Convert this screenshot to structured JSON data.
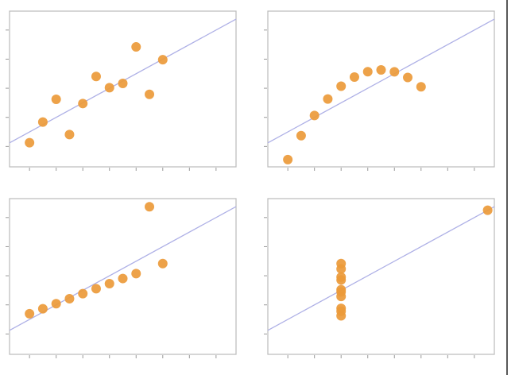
{
  "chart_data": [
    {
      "type": "scatter",
      "x": [
        10,
        8,
        13,
        9,
        11,
        14,
        6,
        4,
        12,
        7,
        5
      ],
      "y": [
        8.04,
        6.95,
        7.58,
        8.81,
        8.33,
        9.96,
        7.24,
        4.26,
        10.84,
        4.82,
        5.68
      ],
      "color": "#ec9a3a",
      "xlim": [
        2.5,
        19.5
      ],
      "ylim": [
        2.6,
        13.3
      ],
      "xticks": [
        4,
        6,
        8,
        10,
        12,
        14,
        16,
        18
      ],
      "yticks": [
        4,
        6,
        8,
        10,
        12
      ],
      "fit_line": {
        "intercept": 3,
        "slope": 0.5,
        "color": "#aeb0e6"
      }
    },
    {
      "type": "scatter",
      "x": [
        10,
        8,
        13,
        9,
        11,
        14,
        6,
        4,
        12,
        7,
        5
      ],
      "y": [
        9.14,
        8.14,
        8.74,
        8.77,
        9.26,
        8.1,
        6.13,
        3.1,
        9.13,
        7.26,
        4.74
      ],
      "color": "#ec9a3a",
      "xlim": [
        2.5,
        19.5
      ],
      "ylim": [
        2.6,
        13.3
      ],
      "xticks": [
        4,
        6,
        8,
        10,
        12,
        14,
        16,
        18
      ],
      "yticks": [
        4,
        6,
        8,
        10,
        12
      ],
      "fit_line": {
        "intercept": 3,
        "slope": 0.5,
        "color": "#aeb0e6"
      }
    },
    {
      "type": "scatter",
      "x": [
        10,
        8,
        13,
        9,
        11,
        14,
        6,
        4,
        12,
        7,
        5
      ],
      "y": [
        7.46,
        6.77,
        12.74,
        7.11,
        7.81,
        8.84,
        6.08,
        5.39,
        8.15,
        6.42,
        5.73
      ],
      "color": "#ec9a3a",
      "xlim": [
        2.5,
        19.5
      ],
      "ylim": [
        2.6,
        13.3
      ],
      "xticks": [
        4,
        6,
        8,
        10,
        12,
        14,
        16,
        18
      ],
      "yticks": [
        4,
        6,
        8,
        10,
        12
      ],
      "fit_line": {
        "intercept": 3,
        "slope": 0.5,
        "color": "#aeb0e6"
      }
    },
    {
      "type": "scatter",
      "x": [
        8,
        8,
        8,
        8,
        8,
        8,
        8,
        19,
        8,
        8,
        8
      ],
      "y": [
        6.58,
        5.76,
        7.71,
        8.84,
        8.47,
        7.04,
        5.25,
        12.5,
        5.56,
        7.91,
        6.89
      ],
      "color": "#ec9a3a",
      "xlim": [
        2.5,
        19.5
      ],
      "ylim": [
        2.6,
        13.3
      ],
      "xticks": [
        4,
        6,
        8,
        10,
        12,
        14,
        16,
        18
      ],
      "yticks": [
        4,
        6,
        8,
        10,
        12
      ],
      "fit_line": {
        "intercept": 3,
        "slope": 0.5,
        "color": "#aeb0e6"
      }
    }
  ]
}
